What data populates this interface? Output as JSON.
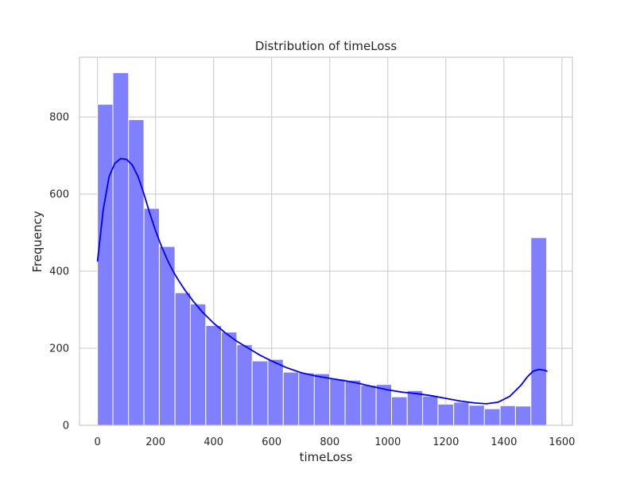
{
  "chart_data": {
    "type": "bar",
    "title": "Distribution of timeLoss",
    "xlabel": "timeLoss",
    "ylabel": "Frequency",
    "xlim": [
      -62,
      1636
    ],
    "ylim": [
      0,
      955
    ],
    "x_ticks": [
      0,
      200,
      400,
      600,
      800,
      1000,
      1200,
      1400,
      1600
    ],
    "y_ticks": [
      0,
      200,
      400,
      600,
      800
    ],
    "grid": true,
    "bar_color": "#8080ff",
    "kde_color": "#0000ee",
    "bins": [
      {
        "start": 0,
        "end": 53,
        "count": 833
      },
      {
        "start": 53,
        "end": 107,
        "count": 915
      },
      {
        "start": 107,
        "end": 160,
        "count": 793
      },
      {
        "start": 160,
        "end": 213,
        "count": 563
      },
      {
        "start": 213,
        "end": 267,
        "count": 464
      },
      {
        "start": 267,
        "end": 320,
        "count": 344
      },
      {
        "start": 320,
        "end": 373,
        "count": 315
      },
      {
        "start": 373,
        "end": 427,
        "count": 259
      },
      {
        "start": 427,
        "end": 480,
        "count": 242
      },
      {
        "start": 480,
        "end": 533,
        "count": 209
      },
      {
        "start": 533,
        "end": 587,
        "count": 167
      },
      {
        "start": 587,
        "end": 640,
        "count": 171
      },
      {
        "start": 640,
        "end": 693,
        "count": 138
      },
      {
        "start": 693,
        "end": 747,
        "count": 136
      },
      {
        "start": 747,
        "end": 800,
        "count": 134
      },
      {
        "start": 800,
        "end": 853,
        "count": 120
      },
      {
        "start": 853,
        "end": 907,
        "count": 117
      },
      {
        "start": 907,
        "end": 960,
        "count": 104
      },
      {
        "start": 960,
        "end": 1013,
        "count": 106
      },
      {
        "start": 1013,
        "end": 1067,
        "count": 74
      },
      {
        "start": 1067,
        "end": 1120,
        "count": 90
      },
      {
        "start": 1120,
        "end": 1173,
        "count": 76
      },
      {
        "start": 1173,
        "end": 1227,
        "count": 55
      },
      {
        "start": 1227,
        "end": 1280,
        "count": 60
      },
      {
        "start": 1280,
        "end": 1333,
        "count": 52
      },
      {
        "start": 1333,
        "end": 1387,
        "count": 43
      },
      {
        "start": 1387,
        "end": 1440,
        "count": 51
      },
      {
        "start": 1440,
        "end": 1493,
        "count": 50
      },
      {
        "start": 1493,
        "end": 1547,
        "count": 487
      }
    ],
    "kde": {
      "x": [
        0,
        20,
        40,
        60,
        80,
        100,
        120,
        140,
        160,
        180,
        200,
        220,
        240,
        260,
        280,
        300,
        330,
        360,
        400,
        440,
        480,
        520,
        560,
        600,
        650,
        700,
        750,
        800,
        850,
        900,
        950,
        1000,
        1050,
        1100,
        1150,
        1200,
        1250,
        1300,
        1340,
        1380,
        1420,
        1460,
        1480,
        1500,
        1520,
        1540,
        1550
      ],
      "y": [
        425,
        560,
        645,
        680,
        692,
        690,
        675,
        645,
        600,
        550,
        505,
        465,
        430,
        400,
        375,
        352,
        322,
        295,
        265,
        240,
        218,
        200,
        182,
        167,
        150,
        137,
        128,
        122,
        116,
        109,
        100,
        92,
        86,
        82,
        77,
        70,
        63,
        58,
        56,
        60,
        75,
        105,
        125,
        140,
        145,
        143,
        140
      ]
    }
  }
}
